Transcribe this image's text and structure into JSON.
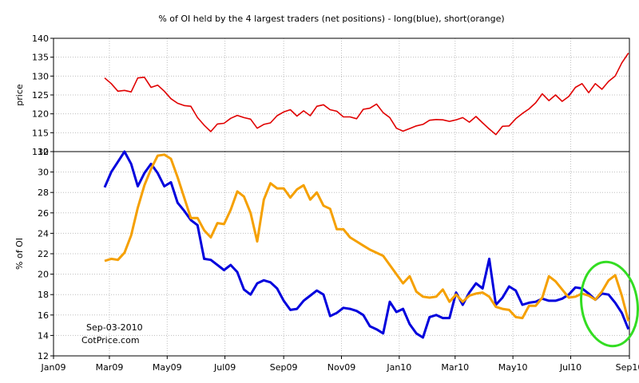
{
  "chart_data": {
    "title": "% of OI held by the 4 largest traders (net positions) - long(blue), short(orange)",
    "x_axis": {
      "type": "date",
      "range": [
        "2009-01-01",
        "2010-09-01"
      ],
      "tick_labels": [
        "Jan09",
        "Mar09",
        "May09",
        "Jul09",
        "Sep09",
        "Nov09",
        "Jan10",
        "Mar10",
        "May10",
        "Jul10",
        "Sep10"
      ]
    },
    "annotation": {
      "date_label": "Sep-03-2010",
      "source_label": "CotPrice.com"
    },
    "panels": [
      {
        "type": "line",
        "ylabel": "price",
        "ylim": [
          110,
          140
        ],
        "y_ticks": [
          110,
          115,
          120,
          125,
          130,
          135,
          140
        ],
        "grid": true,
        "series": [
          {
            "color": "#e00000",
            "x": [
              "2009-02-24",
              "2009-03-03",
              "2009-03-10",
              "2009-03-17",
              "2009-03-24",
              "2009-03-31",
              "2009-04-07",
              "2009-04-14",
              "2009-04-21",
              "2009-04-28",
              "2009-05-05",
              "2009-05-12",
              "2009-05-19",
              "2009-05-26",
              "2009-06-02",
              "2009-06-09",
              "2009-06-16",
              "2009-06-23",
              "2009-06-30",
              "2009-07-07",
              "2009-07-14",
              "2009-07-21",
              "2009-07-28",
              "2009-08-04",
              "2009-08-11",
              "2009-08-18",
              "2009-08-25",
              "2009-09-01",
              "2009-09-08",
              "2009-09-15",
              "2009-09-22",
              "2009-09-29",
              "2009-10-06",
              "2009-10-13",
              "2009-10-20",
              "2009-10-27",
              "2009-11-03",
              "2009-11-10",
              "2009-11-17",
              "2009-11-24",
              "2009-12-01",
              "2009-12-08",
              "2009-12-15",
              "2009-12-22",
              "2009-12-29",
              "2010-01-05",
              "2010-01-12",
              "2010-01-19",
              "2010-01-26",
              "2010-02-02",
              "2010-02-09",
              "2010-02-16",
              "2010-02-23",
              "2010-03-02",
              "2010-03-09",
              "2010-03-16",
              "2010-03-23",
              "2010-03-30",
              "2010-04-06",
              "2010-04-13",
              "2010-04-20",
              "2010-04-27",
              "2010-05-04",
              "2010-05-11",
              "2010-05-18",
              "2010-05-25",
              "2010-06-01",
              "2010-06-08",
              "2010-06-15",
              "2010-06-22",
              "2010-06-29",
              "2010-07-06",
              "2010-07-13",
              "2010-07-20",
              "2010-07-27",
              "2010-08-03",
              "2010-08-10",
              "2010-08-17",
              "2010-08-24",
              "2010-08-31"
            ],
            "y": [
              129.5,
              128,
              126,
              126.2,
              125.8,
              129.5,
              129.7,
              127,
              127.6,
              126,
              124,
              122.8,
              122.2,
              122,
              119,
              117,
              115.3,
              117.3,
              117.5,
              118.8,
              119.6,
              119,
              118.6,
              116.2,
              117.2,
              117.6,
              119.5,
              120.5,
              121.1,
              119.4,
              120.8,
              119.5,
              122,
              122.4,
              121.1,
              120.7,
              119.2,
              119.2,
              118.7,
              121.2,
              121.5,
              122.6,
              120.3,
              119,
              116.2,
              115.4,
              116.1,
              116.8,
              117.2,
              118.3,
              118.5,
              118.4,
              118,
              118.4,
              119,
              117.8,
              119.3,
              117.6,
              116,
              114.5,
              116.7,
              116.8,
              118.7,
              120.1,
              121.3,
              122.9,
              125.3,
              123.5,
              125,
              123.3,
              124.6,
              127,
              128,
              125.6,
              128,
              126.5,
              128.6,
              130,
              133.5,
              136.1
            ]
          }
        ]
      },
      {
        "type": "line",
        "ylabel": "% of OI",
        "ylim": [
          12,
          32
        ],
        "y_ticks": [
          12,
          14,
          16,
          18,
          20,
          22,
          24,
          26,
          28,
          30,
          32
        ],
        "grid": true,
        "series": [
          {
            "color": "#0000dd",
            "x": [
              "2009-02-24",
              "2009-03-03",
              "2009-03-10",
              "2009-03-17",
              "2009-03-24",
              "2009-03-31",
              "2009-04-07",
              "2009-04-14",
              "2009-04-21",
              "2009-04-28",
              "2009-05-05",
              "2009-05-12",
              "2009-05-19",
              "2009-05-26",
              "2009-06-02",
              "2009-06-09",
              "2009-06-16",
              "2009-06-23",
              "2009-06-30",
              "2009-07-07",
              "2009-07-14",
              "2009-07-21",
              "2009-07-28",
              "2009-08-04",
              "2009-08-11",
              "2009-08-18",
              "2009-08-25",
              "2009-09-01",
              "2009-09-08",
              "2009-09-15",
              "2009-09-22",
              "2009-09-29",
              "2009-10-06",
              "2009-10-13",
              "2009-10-20",
              "2009-10-27",
              "2009-11-03",
              "2009-11-10",
              "2009-11-17",
              "2009-11-24",
              "2009-12-01",
              "2009-12-08",
              "2009-12-15",
              "2009-12-22",
              "2009-12-29",
              "2010-01-05",
              "2010-01-12",
              "2010-01-19",
              "2010-01-26",
              "2010-02-02",
              "2010-02-09",
              "2010-02-16",
              "2010-02-23",
              "2010-03-02",
              "2010-03-09",
              "2010-03-16",
              "2010-03-23",
              "2010-03-30",
              "2010-04-06",
              "2010-04-13",
              "2010-04-20",
              "2010-04-27",
              "2010-05-04",
              "2010-05-11",
              "2010-05-18",
              "2010-05-25",
              "2010-06-01",
              "2010-06-08",
              "2010-06-15",
              "2010-06-22",
              "2010-06-29",
              "2010-07-06",
              "2010-07-13",
              "2010-07-20",
              "2010-07-27",
              "2010-08-03",
              "2010-08-10",
              "2010-08-17",
              "2010-08-24",
              "2010-08-31"
            ],
            "y": [
              28.5,
              30,
              31,
              32,
              30.8,
              28.6,
              29.9,
              30.8,
              29.9,
              28.6,
              29,
              27,
              26.2,
              25.3,
              24.8,
              21.5,
              21.4,
              20.9,
              20.4,
              20.9,
              20.2,
              18.5,
              18,
              19.1,
              19.4,
              19.2,
              18.6,
              17.4,
              16.5,
              16.6,
              17.4,
              17.9,
              18.4,
              18,
              15.9,
              16.2,
              16.7,
              16.6,
              16.4,
              16,
              14.9,
              14.6,
              14.2,
              17.3,
              16.3,
              16.6,
              15.1,
              14.2,
              13.8,
              15.8,
              16,
              15.7,
              15.7,
              18.2,
              17,
              18.2,
              19.1,
              18.6,
              21.5,
              17,
              17.7,
              18.8,
              18.4,
              17,
              17.2,
              17.3,
              17.6,
              17.4,
              17.4,
              17.6,
              18,
              18.7,
              18.6,
              18.1,
              17.5,
              18.1,
              18,
              17.2,
              16.2,
              14.6
            ]
          },
          {
            "color": "#f5a000",
            "x": [
              "2009-02-24",
              "2009-03-03",
              "2009-03-10",
              "2009-03-17",
              "2009-03-24",
              "2009-03-31",
              "2009-04-07",
              "2009-04-14",
              "2009-04-21",
              "2009-04-28",
              "2009-05-05",
              "2009-05-12",
              "2009-05-19",
              "2009-05-26",
              "2009-06-02",
              "2009-06-09",
              "2009-06-16",
              "2009-06-23",
              "2009-06-30",
              "2009-07-07",
              "2009-07-14",
              "2009-07-21",
              "2009-07-28",
              "2009-08-04",
              "2009-08-11",
              "2009-08-18",
              "2009-08-25",
              "2009-09-01",
              "2009-09-08",
              "2009-09-15",
              "2009-09-22",
              "2009-09-29",
              "2009-10-06",
              "2009-10-13",
              "2009-10-20",
              "2009-10-27",
              "2009-11-03",
              "2009-11-10",
              "2009-11-17",
              "2009-11-24",
              "2009-12-01",
              "2009-12-08",
              "2009-12-15",
              "2009-12-22",
              "2009-12-29",
              "2010-01-05",
              "2010-01-12",
              "2010-01-19",
              "2010-01-26",
              "2010-02-02",
              "2010-02-09",
              "2010-02-16",
              "2010-02-23",
              "2010-03-02",
              "2010-03-09",
              "2010-03-16",
              "2010-03-23",
              "2010-03-30",
              "2010-04-06",
              "2010-04-13",
              "2010-04-20",
              "2010-04-27",
              "2010-05-04",
              "2010-05-11",
              "2010-05-18",
              "2010-05-25",
              "2010-06-01",
              "2010-06-08",
              "2010-06-15",
              "2010-06-22",
              "2010-06-29",
              "2010-07-06",
              "2010-07-13",
              "2010-07-20",
              "2010-07-27",
              "2010-08-03",
              "2010-08-10",
              "2010-08-17",
              "2010-08-24",
              "2010-08-31"
            ],
            "y": [
              21.3,
              21.5,
              21.4,
              22.1,
              23.8,
              26.5,
              28.7,
              30.3,
              31.6,
              31.7,
              31.3,
              29.5,
              27.5,
              25.5,
              25.5,
              24.3,
              23.6,
              25,
              24.9,
              26.3,
              28.1,
              27.6,
              26,
              23.2,
              27.3,
              28.9,
              28.4,
              28.4,
              27.5,
              28.3,
              28.7,
              27.3,
              28,
              26.7,
              26.4,
              24.4,
              24.4,
              23.6,
              23.2,
              22.8,
              22.4,
              22.1,
              21.8,
              20.9,
              20,
              19.1,
              19.8,
              18.3,
              17.8,
              17.7,
              17.8,
              18.5,
              17.3,
              18,
              17.3,
              17.9,
              18.1,
              18.2,
              17.8,
              16.8,
              16.6,
              16.5,
              15.8,
              15.7,
              16.9,
              16.9,
              17.7,
              19.8,
              19.3,
              18.5,
              17.7,
              17.8,
              18.1,
              17.9,
              17.5,
              18.3,
              19.4,
              19.9,
              17.9,
              15.4
            ]
          }
        ]
      }
    ]
  }
}
